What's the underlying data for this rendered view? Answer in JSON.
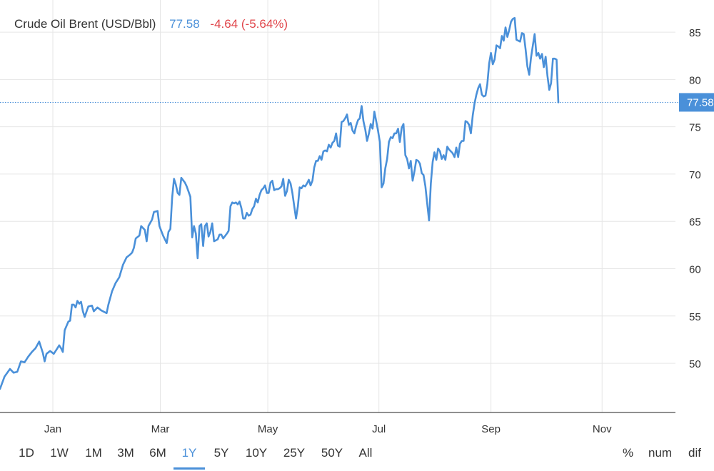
{
  "legend": {
    "name": "Crude Oil Brent (USD/Bbl)",
    "price": "77.58",
    "change": "-4.64 (-5.64%)"
  },
  "colors": {
    "line": "#4a90d9",
    "negative": "#e0454a",
    "grid": "#e6e6e6",
    "axis": "#222222"
  },
  "current_label": "77.58",
  "ranges": [
    "1D",
    "1W",
    "1M",
    "3M",
    "6M",
    "1Y",
    "5Y",
    "10Y",
    "25Y",
    "50Y",
    "All"
  ],
  "active_range": "1Y",
  "modes": [
    "%",
    "num",
    "dif"
  ],
  "chart_data": {
    "type": "line",
    "xlabel": "",
    "ylabel": "",
    "y_ticks": [
      50,
      55,
      60,
      65,
      70,
      75,
      80,
      85
    ],
    "ylim": [
      44.8,
      88.4
    ],
    "x_ticks": [
      "Jan",
      "Mar",
      "May",
      "Jul",
      "Sep",
      "Nov"
    ],
    "x_tick_positions": [
      8.5,
      67.5,
      126.5,
      187.5,
      249,
      310
    ],
    "xlim": [
      -20.5,
      344
    ],
    "grid": true,
    "current_value": 77.58,
    "series": [
      {
        "values": [
          [
            -20.5,
            47.3
          ],
          [
            -18,
            48.6
          ],
          [
            -15,
            49.4
          ],
          [
            -13,
            49.0
          ],
          [
            -11,
            49.1
          ],
          [
            -9,
            50.2
          ],
          [
            -7,
            50.1
          ],
          [
            -5,
            50.7
          ],
          [
            -3,
            51.2
          ],
          [
            -1,
            51.6
          ],
          [
            1,
            52.3
          ],
          [
            3,
            51.1
          ],
          [
            4,
            50.2
          ],
          [
            5,
            51.0
          ],
          [
            7,
            51.3
          ],
          [
            9,
            51.0
          ],
          [
            11,
            51.6
          ],
          [
            12,
            51.9
          ],
          [
            13,
            51.6
          ],
          [
            14,
            51.2
          ],
          [
            15,
            53.5
          ],
          [
            17,
            54.4
          ],
          [
            18,
            54.5
          ],
          [
            19,
            56.2
          ],
          [
            20,
            56.2
          ],
          [
            21,
            55.9
          ],
          [
            22,
            56.6
          ],
          [
            23,
            56.3
          ],
          [
            24,
            56.5
          ],
          [
            25,
            55.5
          ],
          [
            26,
            54.9
          ],
          [
            28,
            56.0
          ],
          [
            30,
            56.1
          ],
          [
            31,
            55.5
          ],
          [
            33,
            55.9
          ],
          [
            35,
            55.6
          ],
          [
            37,
            55.4
          ],
          [
            38,
            55.3
          ],
          [
            39,
            56.2
          ],
          [
            41,
            57.6
          ],
          [
            43,
            58.5
          ],
          [
            45,
            59.1
          ],
          [
            47,
            60.4
          ],
          [
            49,
            61.2
          ],
          [
            51,
            61.5
          ],
          [
            52,
            61.7
          ],
          [
            53,
            62.2
          ],
          [
            54,
            63.2
          ],
          [
            56,
            63.5
          ],
          [
            57,
            64.5
          ],
          [
            59,
            64.1
          ],
          [
            60,
            62.9
          ],
          [
            61,
            64.5
          ],
          [
            63,
            65.2
          ],
          [
            64,
            66.0
          ],
          [
            66,
            66.1
          ],
          [
            67,
            64.5
          ],
          [
            69,
            63.5
          ],
          [
            71,
            62.7
          ],
          [
            72,
            63.9
          ],
          [
            73,
            64.2
          ],
          [
            74,
            67.5
          ],
          [
            75,
            69.5
          ],
          [
            76,
            68.9
          ],
          [
            77,
            68.0
          ],
          [
            78,
            67.8
          ],
          [
            79,
            69.6
          ],
          [
            81,
            69.1
          ],
          [
            82,
            68.7
          ],
          [
            84,
            67.6
          ],
          [
            85,
            63.3
          ],
          [
            86,
            64.5
          ],
          [
            87,
            63.7
          ],
          [
            88,
            61.1
          ],
          [
            89,
            64.5
          ],
          [
            90,
            64.7
          ],
          [
            91,
            62.4
          ],
          [
            92,
            64.5
          ],
          [
            93,
            64.8
          ],
          [
            94,
            63.4
          ],
          [
            95,
            63.9
          ],
          [
            96,
            64.8
          ],
          [
            97,
            62.9
          ],
          [
            99,
            63.1
          ],
          [
            100,
            63.6
          ],
          [
            101,
            63.6
          ],
          [
            102,
            63.2
          ],
          [
            104,
            63.7
          ],
          [
            105,
            64.0
          ],
          [
            106,
            66.6
          ],
          [
            107,
            67.0
          ],
          [
            108,
            66.9
          ],
          [
            109,
            67.0
          ],
          [
            110,
            66.8
          ],
          [
            111,
            67.1
          ],
          [
            112,
            66.4
          ],
          [
            113,
            65.3
          ],
          [
            114,
            65.3
          ],
          [
            115,
            65.9
          ],
          [
            116,
            65.6
          ],
          [
            117,
            65.7
          ],
          [
            118,
            66.3
          ],
          [
            119,
            66.6
          ],
          [
            120,
            67.4
          ],
          [
            121,
            67.0
          ],
          [
            122,
            67.8
          ],
          [
            123,
            68.3
          ],
          [
            124,
            68.5
          ],
          [
            125,
            68.8
          ],
          [
            126,
            68.0
          ],
          [
            127,
            68.0
          ],
          [
            128,
            69.1
          ],
          [
            129,
            69.3
          ],
          [
            130,
            68.3
          ],
          [
            131,
            68.4
          ],
          [
            132,
            68.4
          ],
          [
            133,
            68.5
          ],
          [
            134,
            68.7
          ],
          [
            135,
            69.5
          ],
          [
            136,
            67.7
          ],
          [
            137,
            68.2
          ],
          [
            138,
            69.4
          ],
          [
            139,
            69.0
          ],
          [
            140,
            68.0
          ],
          [
            141,
            66.6
          ],
          [
            142,
            65.3
          ],
          [
            143,
            66.6
          ],
          [
            144,
            68.6
          ],
          [
            145,
            68.5
          ],
          [
            146,
            68.8
          ],
          [
            147,
            68.7
          ],
          [
            148,
            69.0
          ],
          [
            149,
            69.4
          ],
          [
            150,
            68.8
          ],
          [
            151,
            69.3
          ],
          [
            152,
            70.7
          ],
          [
            153,
            71.4
          ],
          [
            154,
            71.4
          ],
          [
            155,
            71.9
          ],
          [
            156,
            71.5
          ],
          [
            157,
            72.4
          ],
          [
            158,
            72.5
          ],
          [
            159,
            72.4
          ],
          [
            160,
            73.1
          ],
          [
            161,
            72.8
          ],
          [
            162,
            73.3
          ],
          [
            163,
            73.5
          ],
          [
            164,
            74.3
          ],
          [
            165,
            73.0
          ],
          [
            166,
            72.9
          ],
          [
            167,
            75.5
          ],
          [
            168,
            75.6
          ],
          [
            169,
            75.9
          ],
          [
            170,
            76.3
          ],
          [
            171,
            75.2
          ],
          [
            172,
            75.4
          ],
          [
            173,
            74.6
          ],
          [
            174,
            74.3
          ],
          [
            175,
            75.1
          ],
          [
            176,
            75.7
          ],
          [
            177,
            75.9
          ],
          [
            178,
            77.2
          ],
          [
            179,
            75.6
          ],
          [
            180,
            74.7
          ],
          [
            181,
            73.5
          ],
          [
            182,
            74.3
          ],
          [
            183,
            75.3
          ],
          [
            184,
            74.8
          ],
          [
            185,
            76.6
          ],
          [
            186,
            75.6
          ],
          [
            187,
            74.6
          ],
          [
            188,
            73.4
          ],
          [
            189,
            68.6
          ],
          [
            190,
            69.0
          ],
          [
            191,
            70.6
          ],
          [
            192,
            71.6
          ],
          [
            193,
            73.4
          ],
          [
            194,
            73.9
          ],
          [
            195,
            73.8
          ],
          [
            196,
            74.3
          ],
          [
            197,
            74.3
          ],
          [
            198,
            74.8
          ],
          [
            199,
            73.4
          ],
          [
            200,
            74.9
          ],
          [
            201,
            75.3
          ],
          [
            202,
            72.0
          ],
          [
            203,
            71.6
          ],
          [
            204,
            70.6
          ],
          [
            205,
            71.4
          ],
          [
            206,
            69.3
          ],
          [
            207,
            70.3
          ],
          [
            208,
            71.5
          ],
          [
            209,
            71.4
          ],
          [
            210,
            71.1
          ],
          [
            211,
            70.1
          ],
          [
            212,
            69.9
          ],
          [
            213,
            68.7
          ],
          [
            214,
            66.9
          ],
          [
            215,
            65.1
          ],
          [
            216,
            69.0
          ],
          [
            217,
            71.3
          ],
          [
            218,
            72.3
          ],
          [
            219,
            71.5
          ],
          [
            220,
            72.7
          ],
          [
            221,
            72.4
          ],
          [
            222,
            71.6
          ],
          [
            223,
            72.0
          ],
          [
            224,
            71.5
          ],
          [
            225,
            72.9
          ],
          [
            226,
            72.6
          ],
          [
            227,
            72.4
          ],
          [
            228,
            72.2
          ],
          [
            229,
            71.8
          ],
          [
            230,
            72.8
          ],
          [
            231,
            71.8
          ],
          [
            232,
            73.2
          ],
          [
            233,
            73.5
          ],
          [
            234,
            73.5
          ],
          [
            235,
            75.6
          ],
          [
            236,
            75.5
          ],
          [
            237,
            75.2
          ],
          [
            238,
            74.3
          ],
          [
            239,
            76.2
          ],
          [
            240,
            77.5
          ],
          [
            241,
            78.4
          ],
          [
            242,
            79.1
          ],
          [
            243,
            79.5
          ],
          [
            244,
            78.4
          ],
          [
            245,
            78.2
          ],
          [
            246,
            78.3
          ],
          [
            247,
            79.5
          ],
          [
            248,
            81.7
          ],
          [
            249,
            82.8
          ],
          [
            250,
            81.6
          ],
          [
            251,
            82.1
          ],
          [
            252,
            83.6
          ],
          [
            253,
            83.5
          ],
          [
            254,
            83.3
          ],
          [
            255,
            84.6
          ],
          [
            256,
            84.1
          ],
          [
            257,
            85.5
          ],
          [
            258,
            84.5
          ],
          [
            259,
            85.2
          ],
          [
            260,
            86.1
          ],
          [
            261,
            86.4
          ],
          [
            262,
            86.5
          ],
          [
            263,
            84.2
          ],
          [
            264,
            84.1
          ],
          [
            265,
            84.0
          ],
          [
            266,
            84.9
          ],
          [
            267,
            84.8
          ],
          [
            268,
            83.2
          ],
          [
            269,
            81.4
          ],
          [
            270,
            80.5
          ],
          [
            271,
            82.3
          ],
          [
            272,
            83.6
          ],
          [
            273,
            84.8
          ],
          [
            274,
            82.5
          ],
          [
            275,
            82.8
          ],
          [
            276,
            82.2
          ],
          [
            277,
            82.7
          ],
          [
            278,
            81.3
          ],
          [
            279,
            82.4
          ],
          [
            280,
            80.4
          ],
          [
            281,
            78.9
          ],
          [
            282,
            79.6
          ],
          [
            283,
            82.2
          ],
          [
            284,
            82.2
          ],
          [
            285,
            82.1
          ],
          [
            286,
            77.58
          ]
        ]
      }
    ]
  }
}
